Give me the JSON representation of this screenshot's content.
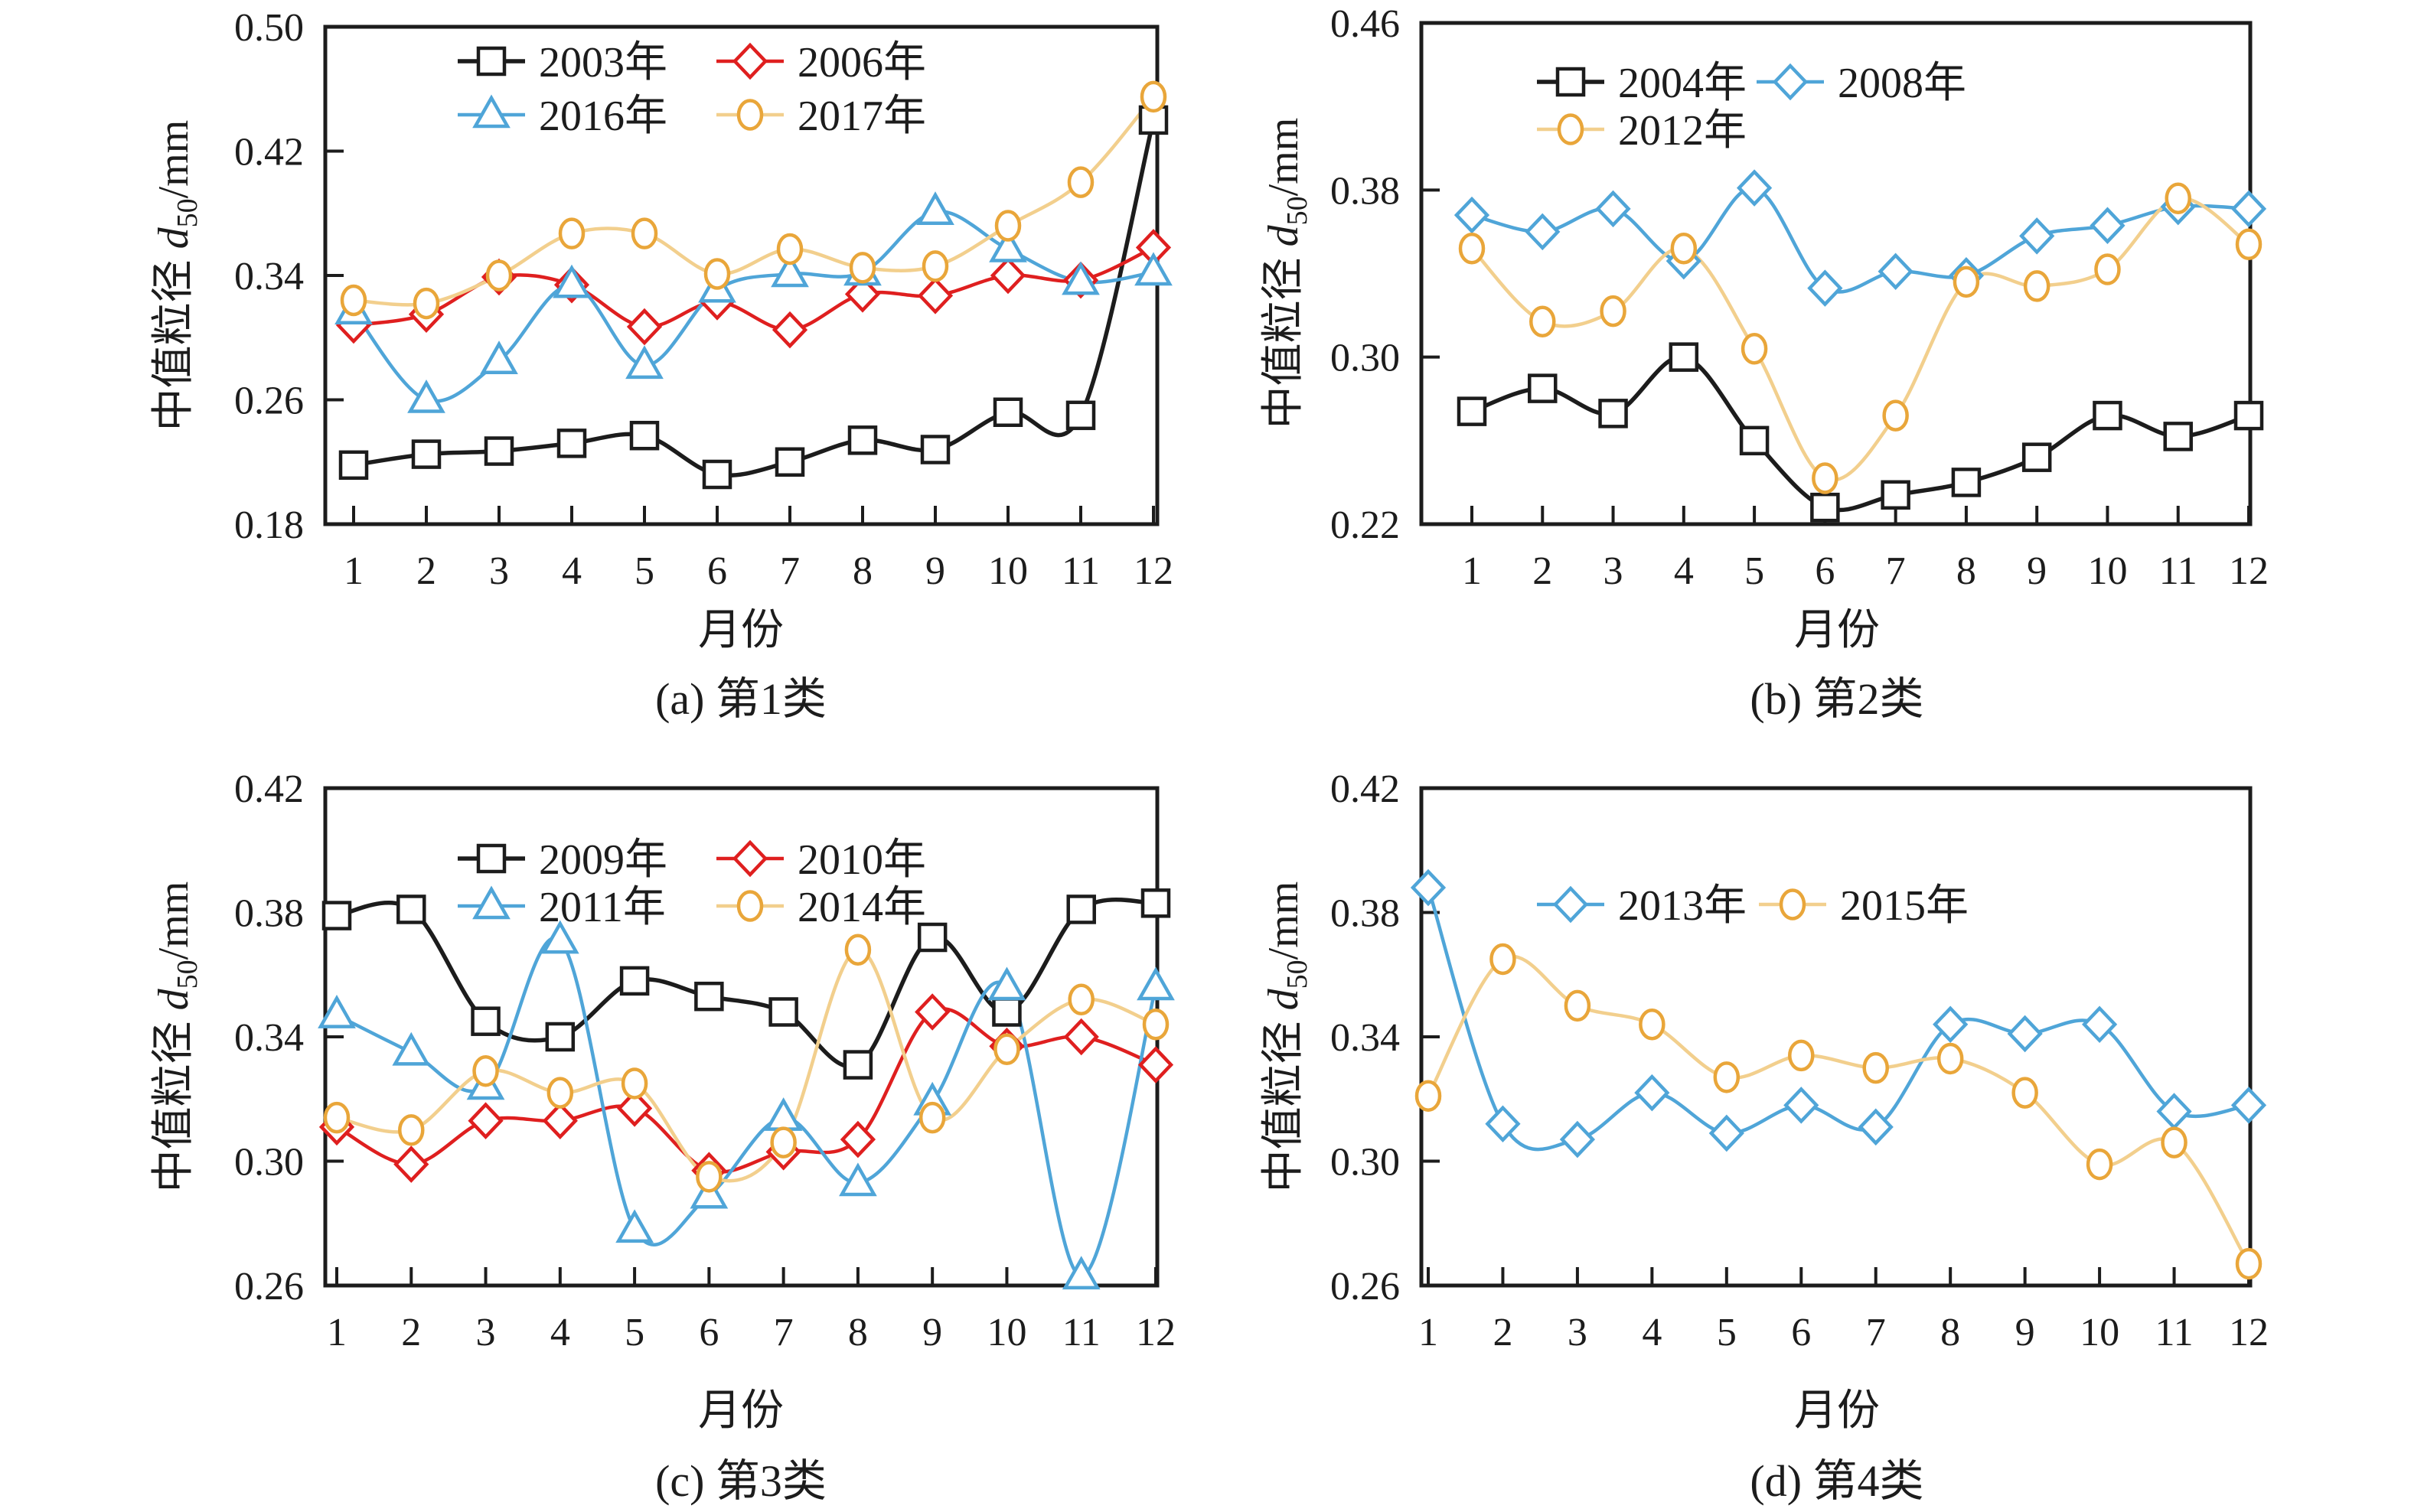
{
  "figure": {
    "xlabel": "月份",
    "ylabel": {
      "prefix": "中值粒径 ",
      "symbol": "d",
      "subscript": "50",
      "suffix": "/mm"
    }
  },
  "colors": {
    "black": "#1c1c1c",
    "red": "#df1f1f",
    "blue": "#4fa5d8",
    "yellow_marker": "#e9a63a",
    "yellow_line": "#f2cf8d",
    "marker_fill": "#ffffff"
  },
  "chart_data": [
    {
      "id": "a",
      "type": "line",
      "title": "(a) 第1类",
      "xlabel": "月份",
      "ylabel": "中值粒径 d50/mm",
      "x": [
        "1",
        "2",
        "3",
        "4",
        "5",
        "6",
        "7",
        "8",
        "9",
        "10",
        "11",
        "12"
      ],
      "ylim": [
        0.18,
        0.5
      ],
      "yticks": [
        "0.18",
        "0.26",
        "0.34",
        "0.42",
        "0.50"
      ],
      "grid": false,
      "legend_position": "upper-center-inside",
      "legend_rows": [
        [
          "2003年",
          "2006年"
        ],
        [
          "2016年",
          "2017年"
        ]
      ],
      "series": [
        {
          "name": "2003年",
          "marker": "square",
          "color": "black",
          "values": [
            0.218,
            0.225,
            0.227,
            0.232,
            0.237,
            0.212,
            0.22,
            0.234,
            0.228,
            0.252,
            0.25,
            0.44
          ]
        },
        {
          "name": "2006年",
          "marker": "diamond",
          "color": "red",
          "values": [
            0.308,
            0.315,
            0.339,
            0.334,
            0.307,
            0.323,
            0.305,
            0.328,
            0.327,
            0.34,
            0.337,
            0.358
          ]
        },
        {
          "name": "2016年",
          "marker": "triangle",
          "color": "blue",
          "values": [
            0.317,
            0.26,
            0.285,
            0.334,
            0.282,
            0.331,
            0.341,
            0.342,
            0.381,
            0.357,
            0.336,
            0.342
          ]
        },
        {
          "name": "2017年",
          "marker": "circle",
          "color": "yellow",
          "values": [
            0.324,
            0.322,
            0.34,
            0.367,
            0.367,
            0.341,
            0.357,
            0.345,
            0.346,
            0.372,
            0.4,
            0.455
          ]
        }
      ]
    },
    {
      "id": "b",
      "type": "line",
      "title": "(b) 第2类",
      "xlabel": "月份",
      "ylabel": "中值粒径 d50/mm",
      "x": [
        "1",
        "2",
        "3",
        "4",
        "5",
        "6",
        "7",
        "8",
        "9",
        "10",
        "11",
        "12"
      ],
      "ylim": [
        0.22,
        0.46
      ],
      "yticks": [
        "0.22",
        "0.30",
        "0.38",
        "0.46"
      ],
      "grid": false,
      "legend_position": "upper-center-inside",
      "legend_rows": [
        [
          "2004年",
          "2008年"
        ],
        [
          "2012年"
        ]
      ],
      "series": [
        {
          "name": "2004年",
          "marker": "square",
          "color": "black",
          "values": [
            0.274,
            0.285,
            0.273,
            0.3,
            0.26,
            0.228,
            0.234,
            0.24,
            0.252,
            0.272,
            0.262,
            0.272
          ]
        },
        {
          "name": "2008年",
          "marker": "diamond",
          "color": "blue",
          "values": [
            0.368,
            0.36,
            0.371,
            0.346,
            0.381,
            0.333,
            0.341,
            0.339,
            0.358,
            0.363,
            0.372,
            0.371
          ]
        },
        {
          "name": "2012年",
          "marker": "circle",
          "color": "yellow",
          "values": [
            0.352,
            0.317,
            0.322,
            0.352,
            0.304,
            0.242,
            0.272,
            0.336,
            0.334,
            0.342,
            0.376,
            0.354
          ]
        }
      ]
    },
    {
      "id": "c",
      "type": "line",
      "title": "(c) 第3类",
      "xlabel": "月份",
      "ylabel": "中值粒径 d50/mm",
      "x": [
        "1",
        "2",
        "3",
        "4",
        "5",
        "6",
        "7",
        "8",
        "9",
        "10",
        "11",
        "12"
      ],
      "ylim": [
        0.26,
        0.42
      ],
      "yticks": [
        "0.26",
        "0.30",
        "0.34",
        "0.38",
        "0.42"
      ],
      "grid": false,
      "legend_position": "upper-center-inside",
      "legend_rows": [
        [
          "2009年",
          "2010年"
        ],
        [
          "2011年",
          "2014年"
        ]
      ],
      "series": [
        {
          "name": "2009年",
          "marker": "square",
          "color": "black",
          "values": [
            0.379,
            0.381,
            0.345,
            0.34,
            0.358,
            0.353,
            0.348,
            0.331,
            0.372,
            0.348,
            0.381,
            0.383
          ]
        },
        {
          "name": "2010年",
          "marker": "diamond",
          "color": "red",
          "values": [
            0.311,
            0.299,
            0.313,
            0.313,
            0.317,
            0.297,
            0.303,
            0.307,
            0.348,
            0.337,
            0.34,
            0.331
          ]
        },
        {
          "name": "2011年",
          "marker": "triangle",
          "color": "blue",
          "values": [
            0.347,
            0.335,
            0.324,
            0.371,
            0.278,
            0.289,
            0.314,
            0.293,
            0.319,
            0.356,
            0.263,
            0.356
          ]
        },
        {
          "name": "2014年",
          "marker": "circle",
          "color": "yellow",
          "values": [
            0.314,
            0.31,
            0.329,
            0.322,
            0.325,
            0.295,
            0.306,
            0.368,
            0.314,
            0.336,
            0.352,
            0.344
          ]
        }
      ]
    },
    {
      "id": "d",
      "type": "line",
      "title": "(d) 第4类",
      "xlabel": "月份",
      "ylabel": "中值粒径 d50/mm",
      "x": [
        "1",
        "2",
        "3",
        "4",
        "5",
        "6",
        "7",
        "8",
        "9",
        "10",
        "11",
        "12"
      ],
      "ylim": [
        0.26,
        0.42
      ],
      "yticks": [
        "0.26",
        "0.30",
        "0.34",
        "0.38",
        "0.42"
      ],
      "grid": false,
      "legend_position": "upper-center-inside",
      "legend_rows": [
        [
          "2013年",
          "2015年"
        ]
      ],
      "series": [
        {
          "name": "2013年",
          "marker": "diamond",
          "color": "blue",
          "values": [
            0.388,
            0.312,
            0.307,
            0.322,
            0.309,
            0.318,
            0.311,
            0.344,
            0.341,
            0.344,
            0.316,
            0.318
          ]
        },
        {
          "name": "2015年",
          "marker": "circle",
          "color": "yellow",
          "values": [
            0.321,
            0.365,
            0.35,
            0.344,
            0.327,
            0.334,
            0.33,
            0.333,
            0.322,
            0.299,
            0.306,
            0.267
          ]
        }
      ]
    }
  ]
}
